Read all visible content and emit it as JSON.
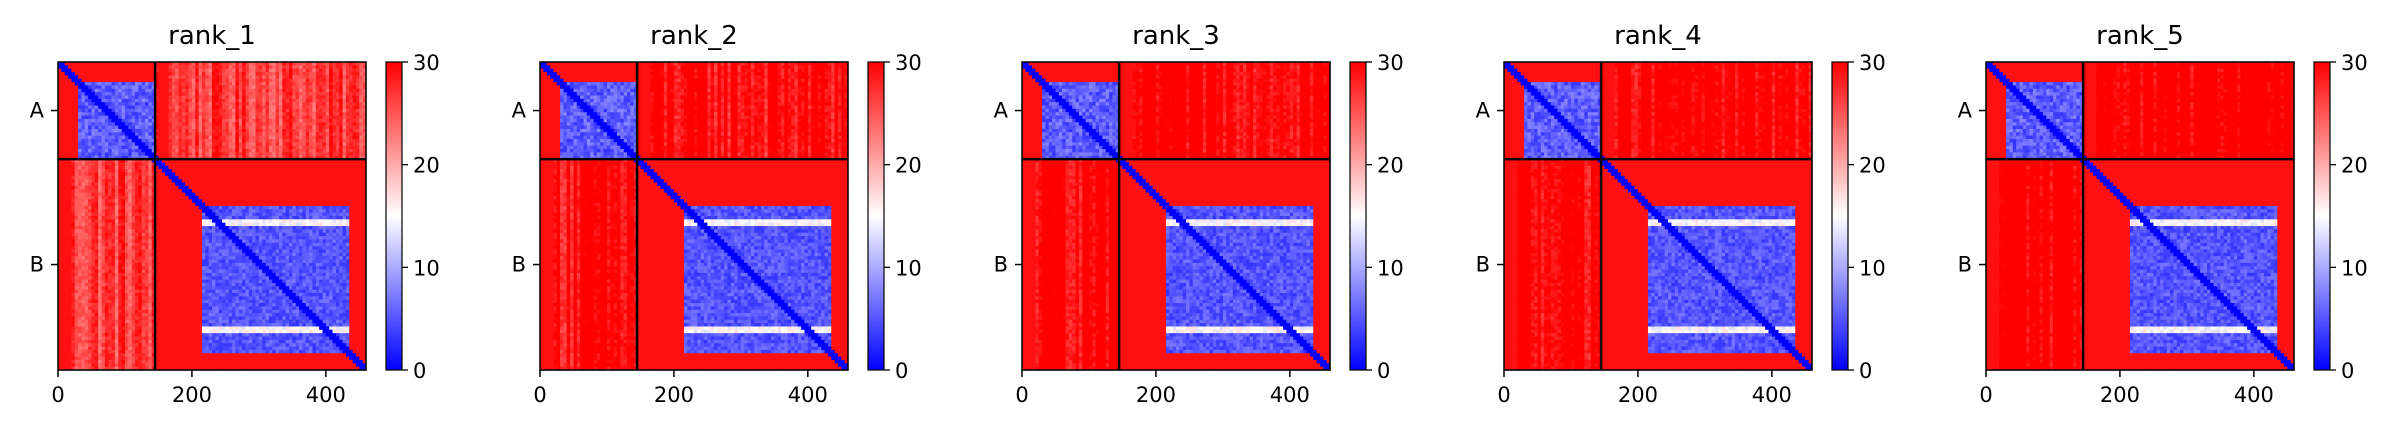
{
  "chart_data": [
    {
      "type": "heatmap",
      "title": "rank_1",
      "chains": [
        "A",
        "B"
      ],
      "chain_boundary": 145,
      "total_length": 460,
      "x_ticks": [
        0,
        200,
        400
      ],
      "colorbar": {
        "min": 0,
        "max": 30,
        "ticks": [
          0,
          10,
          20,
          30
        ],
        "colormap": [
          "#0000ff",
          "#ffffff",
          "#ff0000"
        ]
      },
      "inter_chain_error": 22,
      "domain_B": {
        "start": 215,
        "end": 430,
        "error": 3
      },
      "domain_A": {
        "start": 30,
        "end": 145,
        "error": 3
      }
    },
    {
      "type": "heatmap",
      "title": "rank_2",
      "chains": [
        "A",
        "B"
      ],
      "chain_boundary": 145,
      "total_length": 460,
      "x_ticks": [
        0,
        200,
        400
      ],
      "colorbar": {
        "min": 0,
        "max": 30,
        "ticks": [
          0,
          10,
          20,
          30
        ],
        "colormap": [
          "#0000ff",
          "#ffffff",
          "#ff0000"
        ]
      },
      "inter_chain_error": 25,
      "domain_B": {
        "start": 215,
        "end": 430,
        "error": 3
      },
      "domain_A": {
        "start": 30,
        "end": 145,
        "error": 3
      }
    },
    {
      "type": "heatmap",
      "title": "rank_3",
      "chains": [
        "A",
        "B"
      ],
      "chain_boundary": 145,
      "total_length": 460,
      "x_ticks": [
        0,
        200,
        400
      ],
      "colorbar": {
        "min": 0,
        "max": 30,
        "ticks": [
          0,
          10,
          20,
          30
        ],
        "colormap": [
          "#0000ff",
          "#ffffff",
          "#ff0000"
        ]
      },
      "inter_chain_error": 26,
      "domain_B": {
        "start": 215,
        "end": 430,
        "error": 3
      },
      "domain_A": {
        "start": 30,
        "end": 145,
        "error": 3
      }
    },
    {
      "type": "heatmap",
      "title": "rank_4",
      "chains": [
        "A",
        "B"
      ],
      "chain_boundary": 145,
      "total_length": 460,
      "x_ticks": [
        0,
        200,
        400
      ],
      "colorbar": {
        "min": 0,
        "max": 30,
        "ticks": [
          0,
          10,
          20,
          30
        ],
        "colormap": [
          "#0000ff",
          "#ffffff",
          "#ff0000"
        ]
      },
      "inter_chain_error": 26,
      "domain_B": {
        "start": 215,
        "end": 430,
        "error": 3
      },
      "domain_A": {
        "start": 30,
        "end": 145,
        "error": 3
      }
    },
    {
      "type": "heatmap",
      "title": "rank_5",
      "chains": [
        "A",
        "B"
      ],
      "chain_boundary": 145,
      "total_length": 460,
      "x_ticks": [
        0,
        200,
        400
      ],
      "colorbar": {
        "min": 0,
        "max": 30,
        "ticks": [
          0,
          10,
          20,
          30
        ],
        "colormap": [
          "#0000ff",
          "#ffffff",
          "#ff0000"
        ]
      },
      "inter_chain_error": 27,
      "domain_B": {
        "start": 215,
        "end": 430,
        "error": 3
      },
      "domain_A": {
        "start": 30,
        "end": 145,
        "error": 3
      }
    }
  ]
}
